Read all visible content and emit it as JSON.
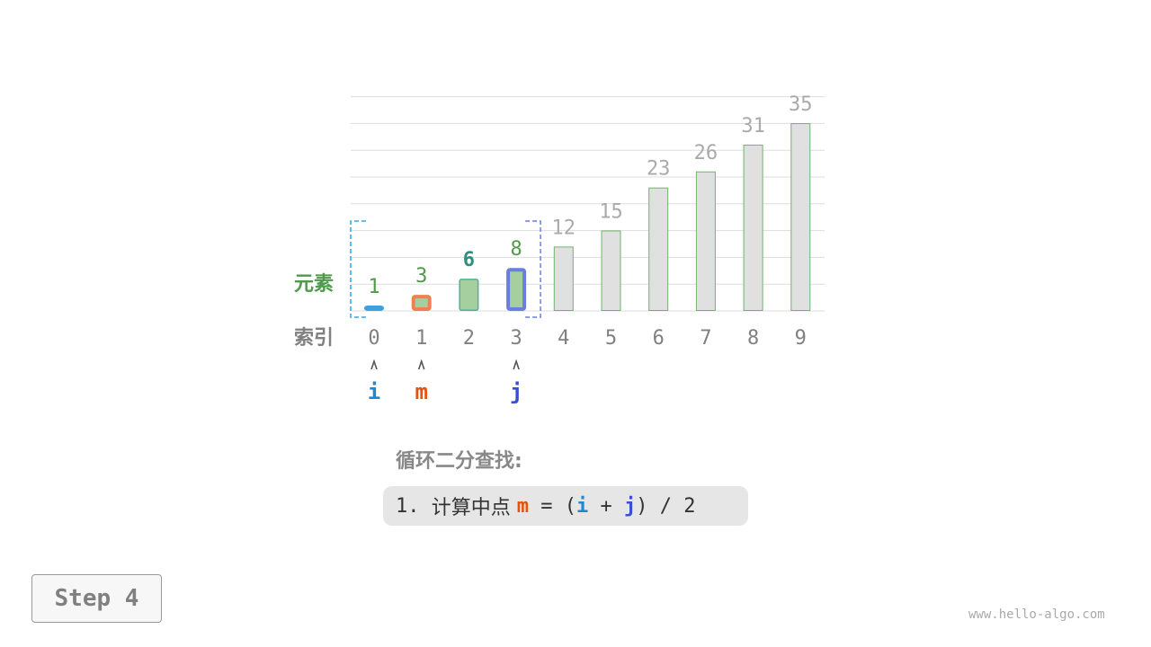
{
  "labels": {
    "elements": "元素",
    "indices": "索引"
  },
  "array": [
    1,
    3,
    6,
    8,
    12,
    15,
    23,
    26,
    31,
    35
  ],
  "pointers": {
    "i": {
      "label": "i",
      "index": 0,
      "color": "#1e88d0"
    },
    "m": {
      "label": "m",
      "index": 1,
      "color": "#e8500f"
    },
    "j": {
      "label": "j",
      "index": 3,
      "color": "#3a4fcf"
    }
  },
  "search_range": [
    0,
    3
  ],
  "title": "循环二分查找:",
  "step_text": {
    "prefix": "1. ",
    "cn": "计算中点 ",
    "m": "m",
    "eq": " = (",
    "i": "i",
    "plus": " + ",
    "j": "j",
    "tail": ") / 2"
  },
  "step_button": "Step 4",
  "watermark": "www.hello-algo.com",
  "colors": {
    "active_fill": "#a6cfa0",
    "inactive_fill": "#e0e0e0",
    "bar_outline": "#6fb56a",
    "value_green": "#4f9a4a",
    "value_gray": "#aaaaaa",
    "highlight_teal": "#2f8f7f",
    "i_border": "#3fa0e0",
    "m_border": "#f08050",
    "j_border": "#6a7fdc"
  }
}
